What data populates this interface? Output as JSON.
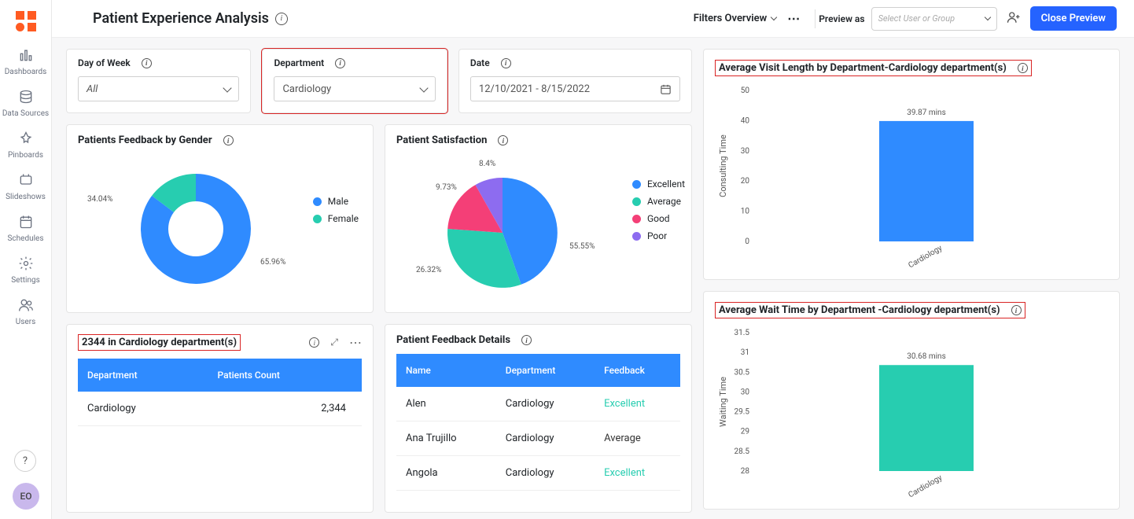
{
  "page": {
    "title": "Patient Experience Analysis"
  },
  "topbar": {
    "filtersOverview": "Filters Overview",
    "previewAsLabel": "Preview as",
    "previewPlaceholder": "Select User or Group",
    "closePreview": "Close Preview"
  },
  "sidebar": {
    "items": [
      {
        "name": "dashboards",
        "label": "Dashboards"
      },
      {
        "name": "datasources",
        "label": "Data Sources"
      },
      {
        "name": "pinboards",
        "label": "Pinboards"
      },
      {
        "name": "slideshows",
        "label": "Slideshows"
      },
      {
        "name": "schedules",
        "label": "Schedules"
      },
      {
        "name": "settings",
        "label": "Settings"
      },
      {
        "name": "users",
        "label": "Users"
      }
    ],
    "avatar": "EO"
  },
  "filters": {
    "dayOfWeek": {
      "label": "Day of Week",
      "value": "All"
    },
    "department": {
      "label": "Department",
      "value": "Cardiology",
      "highlighted": true
    },
    "date": {
      "label": "Date",
      "value": "12/10/2021 - 8/15/2022"
    }
  },
  "genderChart": {
    "title": "Patients Feedback by Gender",
    "type": "donut",
    "series": [
      {
        "label": "Male",
        "value": 65.96,
        "color": "#2f8bff"
      },
      {
        "label": "Female",
        "value": 34.04,
        "color": "#27cdb0"
      }
    ],
    "labelMale": "65.96%",
    "labelFemale": "34.04%",
    "legend": [
      {
        "label": "Male",
        "color": "#2f8bff"
      },
      {
        "label": "Female",
        "color": "#27cdb0"
      }
    ]
  },
  "satisfactionChart": {
    "title": "Patient Satisfaction",
    "type": "pie",
    "series": [
      {
        "label": "Excellent",
        "value": 55.55,
        "color": "#2f8bff"
      },
      {
        "label": "Average",
        "value": 26.32,
        "color": "#27cdb0"
      },
      {
        "label": "Good",
        "value": 9.73,
        "color": "#f43f77"
      },
      {
        "label": "Poor",
        "value": 8.4,
        "color": "#8d6cf0"
      }
    ],
    "labelExcellent": "55.55%",
    "labelAverage": "26.32%",
    "labelGood": "9.73%",
    "labelPoor": "8.4%"
  },
  "countPanel": {
    "title": "2344 in Cardiology department(s)",
    "columns": [
      "Department",
      "Patients Count"
    ],
    "rows": [
      [
        "Cardiology",
        "2,344"
      ]
    ]
  },
  "feedbackPanel": {
    "title": "Patient Feedback Details",
    "columns": [
      "Name",
      "Department",
      "Feedback"
    ],
    "rows": [
      [
        "Alen",
        "Cardiology",
        "Excellent"
      ],
      [
        "Ana Trujillo",
        "Cardiology",
        "Average"
      ],
      [
        "Angola",
        "Cardiology",
        "Excellent"
      ]
    ],
    "feedbackColorMap": {
      "Excellent": "#27cdb0",
      "Average": "#333",
      "Good": "#f43f77",
      "Poor": "#8d6cf0"
    }
  },
  "visitLengthChart": {
    "title": "Average Visit Length by Department-Cardiology department(s)",
    "type": "bar",
    "yAxisLabel": "Consulting Time",
    "yticks": [
      0,
      10,
      20,
      30,
      40,
      50
    ],
    "ylim": [
      0,
      50
    ],
    "category": "Cardiology",
    "value": 39.87,
    "valueLabel": "39.87 mins",
    "barColor": "#2f8bff",
    "background": "#ffffff"
  },
  "waitTimeChart": {
    "title": "Average Wait Time by Department -Cardiology department(s)",
    "type": "bar",
    "yAxisLabel": "Waiting Time",
    "yticks": [
      28,
      28.5,
      29,
      29.5,
      30,
      30.5,
      31,
      31.5
    ],
    "ylim": [
      28,
      31.5
    ],
    "category": "Cardiology",
    "value": 30.68,
    "valueLabel": "30.68 mins",
    "barColor": "#27cdb0",
    "background": "#ffffff"
  }
}
